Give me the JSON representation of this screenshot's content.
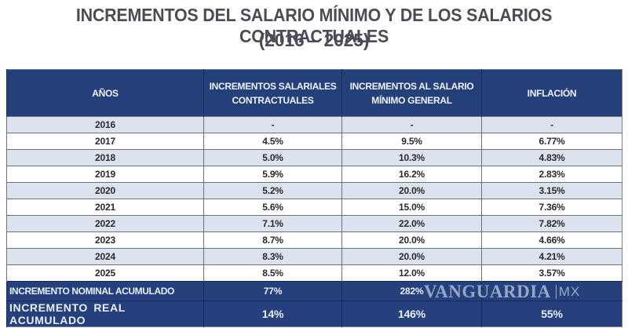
{
  "title": {
    "line1": "INCREMENTOS DEL SALARIO MÍNIMO Y DE LOS SALARIOS CONTRACTUALES",
    "line2": "(2016 – 2025)"
  },
  "table": {
    "headers": [
      "AÑOS",
      "INCREMENTOS SALARIALES CONTRACTUALES",
      "INCREMENTOS AL SALARIO MÍNIMO GENERAL",
      "INFLACIÓN"
    ],
    "rows": [
      {
        "year": "2016",
        "contractual": "-",
        "minimum": "-",
        "inflation": "-"
      },
      {
        "year": "2017",
        "contractual": "4.5%",
        "minimum": "9.5%",
        "inflation": "6.77%"
      },
      {
        "year": "2018",
        "contractual": "5.0%",
        "minimum": "10.3%",
        "inflation": "4.83%"
      },
      {
        "year": "2019",
        "contractual": "5.9%",
        "minimum": "16.2%",
        "inflation": "2.83%"
      },
      {
        "year": "2020",
        "contractual": "5.2%",
        "minimum": "20.0%",
        "inflation": "3.15%"
      },
      {
        "year": "2021",
        "contractual": "5.6%",
        "minimum": "15.0%",
        "inflation": "7.36%"
      },
      {
        "year": "2022",
        "contractual": "7.1%",
        "minimum": "22.0%",
        "inflation": "7.82%"
      },
      {
        "year": "2023",
        "contractual": "8.7%",
        "minimum": "20.0%",
        "inflation": "4.66%"
      },
      {
        "year": "2024",
        "contractual": "8.3%",
        "minimum": "20.0%",
        "inflation": "4.21%"
      },
      {
        "year": "2025",
        "contractual": "8.5%",
        "minimum": "12.0%",
        "inflation": "3.57%"
      }
    ],
    "summary": [
      {
        "label": "INCREMENTO NOMINAL ACUMULADO",
        "contractual": "77%",
        "minimum": "282%",
        "inflation": ""
      },
      {
        "label": "INCREMENTO  REAL  ACUMULADO",
        "contractual": "14%",
        "minimum": "146%",
        "inflation": "55%"
      }
    ]
  },
  "watermark": {
    "main": "VANGUARDIA",
    "suffix": "MX"
  },
  "colors": {
    "header_bg": "#24407a",
    "summary_bg": "#25407d",
    "row_alt_bg": "#dde3ee",
    "title_text": "#4a4d55"
  }
}
